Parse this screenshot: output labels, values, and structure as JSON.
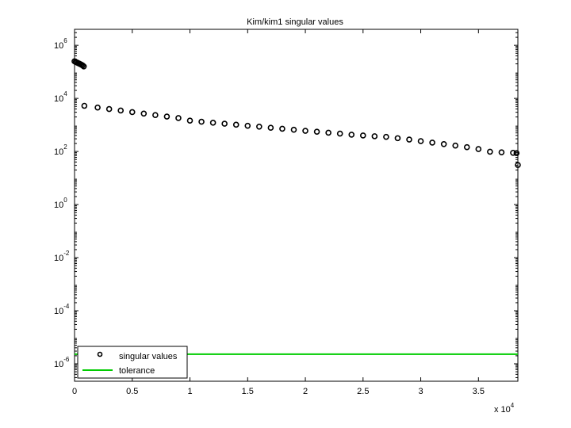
{
  "chart_data": {
    "type": "scatter",
    "title": "Kim/kim1 singular values",
    "log_y": true,
    "legend_position": "lower left",
    "xlim": [
      0,
      38415
    ],
    "ylim": [
      2.2e-07,
      4000000
    ],
    "xticks": [
      0,
      {
        "value": 5000,
        "label": "0.5"
      },
      {
        "value": 10000,
        "label": "1"
      },
      {
        "value": 15000,
        "label": "1.5"
      },
      {
        "value": 20000,
        "label": "2"
      },
      {
        "value": 25000,
        "label": "2.5"
      },
      {
        "value": 30000,
        "label": "3"
      },
      {
        "value": 35000,
        "label": "3.5"
      }
    ],
    "x_multiplier": {
      "label": "x 10",
      "exponent": "4"
    },
    "yticks": [
      {
        "value": 1e-06,
        "label": "10",
        "exponent": "-6"
      },
      {
        "value": 0.0001,
        "label": "10",
        "exponent": "-4"
      },
      {
        "value": 0.01,
        "label": "10",
        "exponent": "-2"
      },
      {
        "value": 1,
        "label": "10",
        "exponent": "0"
      },
      {
        "value": 100,
        "label": "10",
        "exponent": "2"
      },
      {
        "value": 10000,
        "label": "10",
        "exponent": "4"
      },
      {
        "value": 1000000,
        "label": "10",
        "exponent": "6"
      }
    ],
    "series": [
      {
        "name": "singular values",
        "color": "#000000",
        "marker": "circle",
        "x": [
          0,
          100,
          200,
          300,
          400,
          500,
          600,
          700,
          800,
          850,
          2000,
          3000,
          4000,
          5000,
          6000,
          7000,
          8000,
          9000,
          10000,
          11000,
          12000,
          13000,
          14000,
          15000,
          16000,
          17000,
          18000,
          19000,
          20000,
          21000,
          22000,
          23000,
          24000,
          25000,
          26000,
          27000,
          28000,
          29000,
          30000,
          31000,
          32000,
          33000,
          34000,
          35000,
          36000,
          37000,
          38000,
          38300,
          38415
        ],
        "values": [
          250000,
          235000,
          225000,
          215000,
          205000,
          195000,
          185000,
          175000,
          160000,
          5250,
          4520,
          3960,
          3480,
          3050,
          2680,
          2350,
          2070,
          1820,
          1450,
          1320,
          1210,
          1110,
          1020,
          930,
          860,
          780,
          720,
          660,
          600,
          555,
          510,
          470,
          430,
          400,
          375,
          355,
          316,
          282,
          245,
          216,
          190,
          166,
          145,
          123,
          98,
          93,
          89,
          87,
          31
        ]
      },
      {
        "name": "tolerance",
        "color": "#00cc00",
        "marker": "line",
        "x": [
          0,
          38415
        ],
        "values": [
          2.3e-06,
          2.3e-06
        ]
      }
    ]
  }
}
